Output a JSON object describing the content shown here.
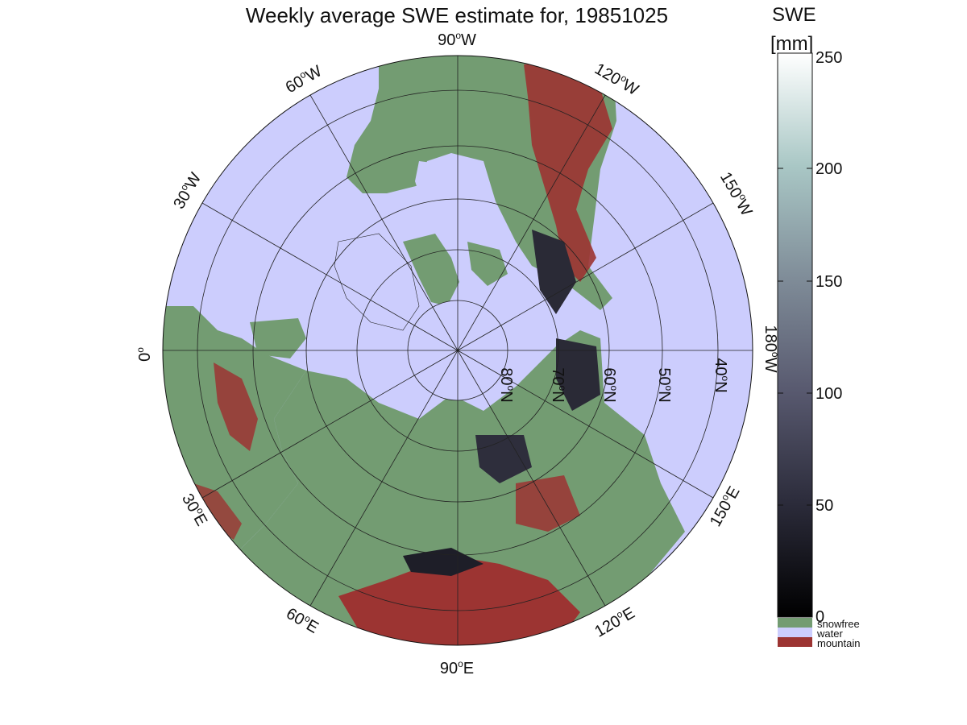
{
  "title": "Weekly average SWE estimate for, 19851025",
  "colorbar": {
    "title_line1": "SWE",
    "title_line2": "[mm]",
    "ticks": [
      "0",
      "50",
      "100",
      "150",
      "200",
      "250"
    ],
    "range": [
      0,
      250
    ],
    "categories": [
      {
        "label": "snowfree",
        "color": "#739c72"
      },
      {
        "label": "water",
        "color": "#cccdfd"
      },
      {
        "label": "mountain",
        "color": "#9c3432"
      }
    ]
  },
  "map": {
    "projection": "north polar stereographic",
    "longitude_labels": [
      {
        "deg": "90",
        "hem": "W"
      },
      {
        "deg": "120",
        "hem": "W"
      },
      {
        "deg": "60",
        "hem": "W"
      },
      {
        "deg": "150",
        "hem": "W"
      },
      {
        "deg": "30",
        "hem": "W"
      },
      {
        "deg": "180",
        "hem": "W"
      },
      {
        "deg": "0",
        "hem": ""
      },
      {
        "deg": "150",
        "hem": "E"
      },
      {
        "deg": "30",
        "hem": "E"
      },
      {
        "deg": "120",
        "hem": "E"
      },
      {
        "deg": "60",
        "hem": "E"
      },
      {
        "deg": "90",
        "hem": "E"
      }
    ],
    "latitude_labels": [
      {
        "deg": "80",
        "hem": "N"
      },
      {
        "deg": "70",
        "hem": "N"
      },
      {
        "deg": "60",
        "hem": "N"
      },
      {
        "deg": "50",
        "hem": "N"
      },
      {
        "deg": "40",
        "hem": "N"
      }
    ],
    "colors": {
      "water": "#cccdfd",
      "land": "#739c72",
      "mountain": "#9c3432",
      "snow_low": "#1a1a22",
      "snow_mid": "#3c3c50"
    }
  }
}
